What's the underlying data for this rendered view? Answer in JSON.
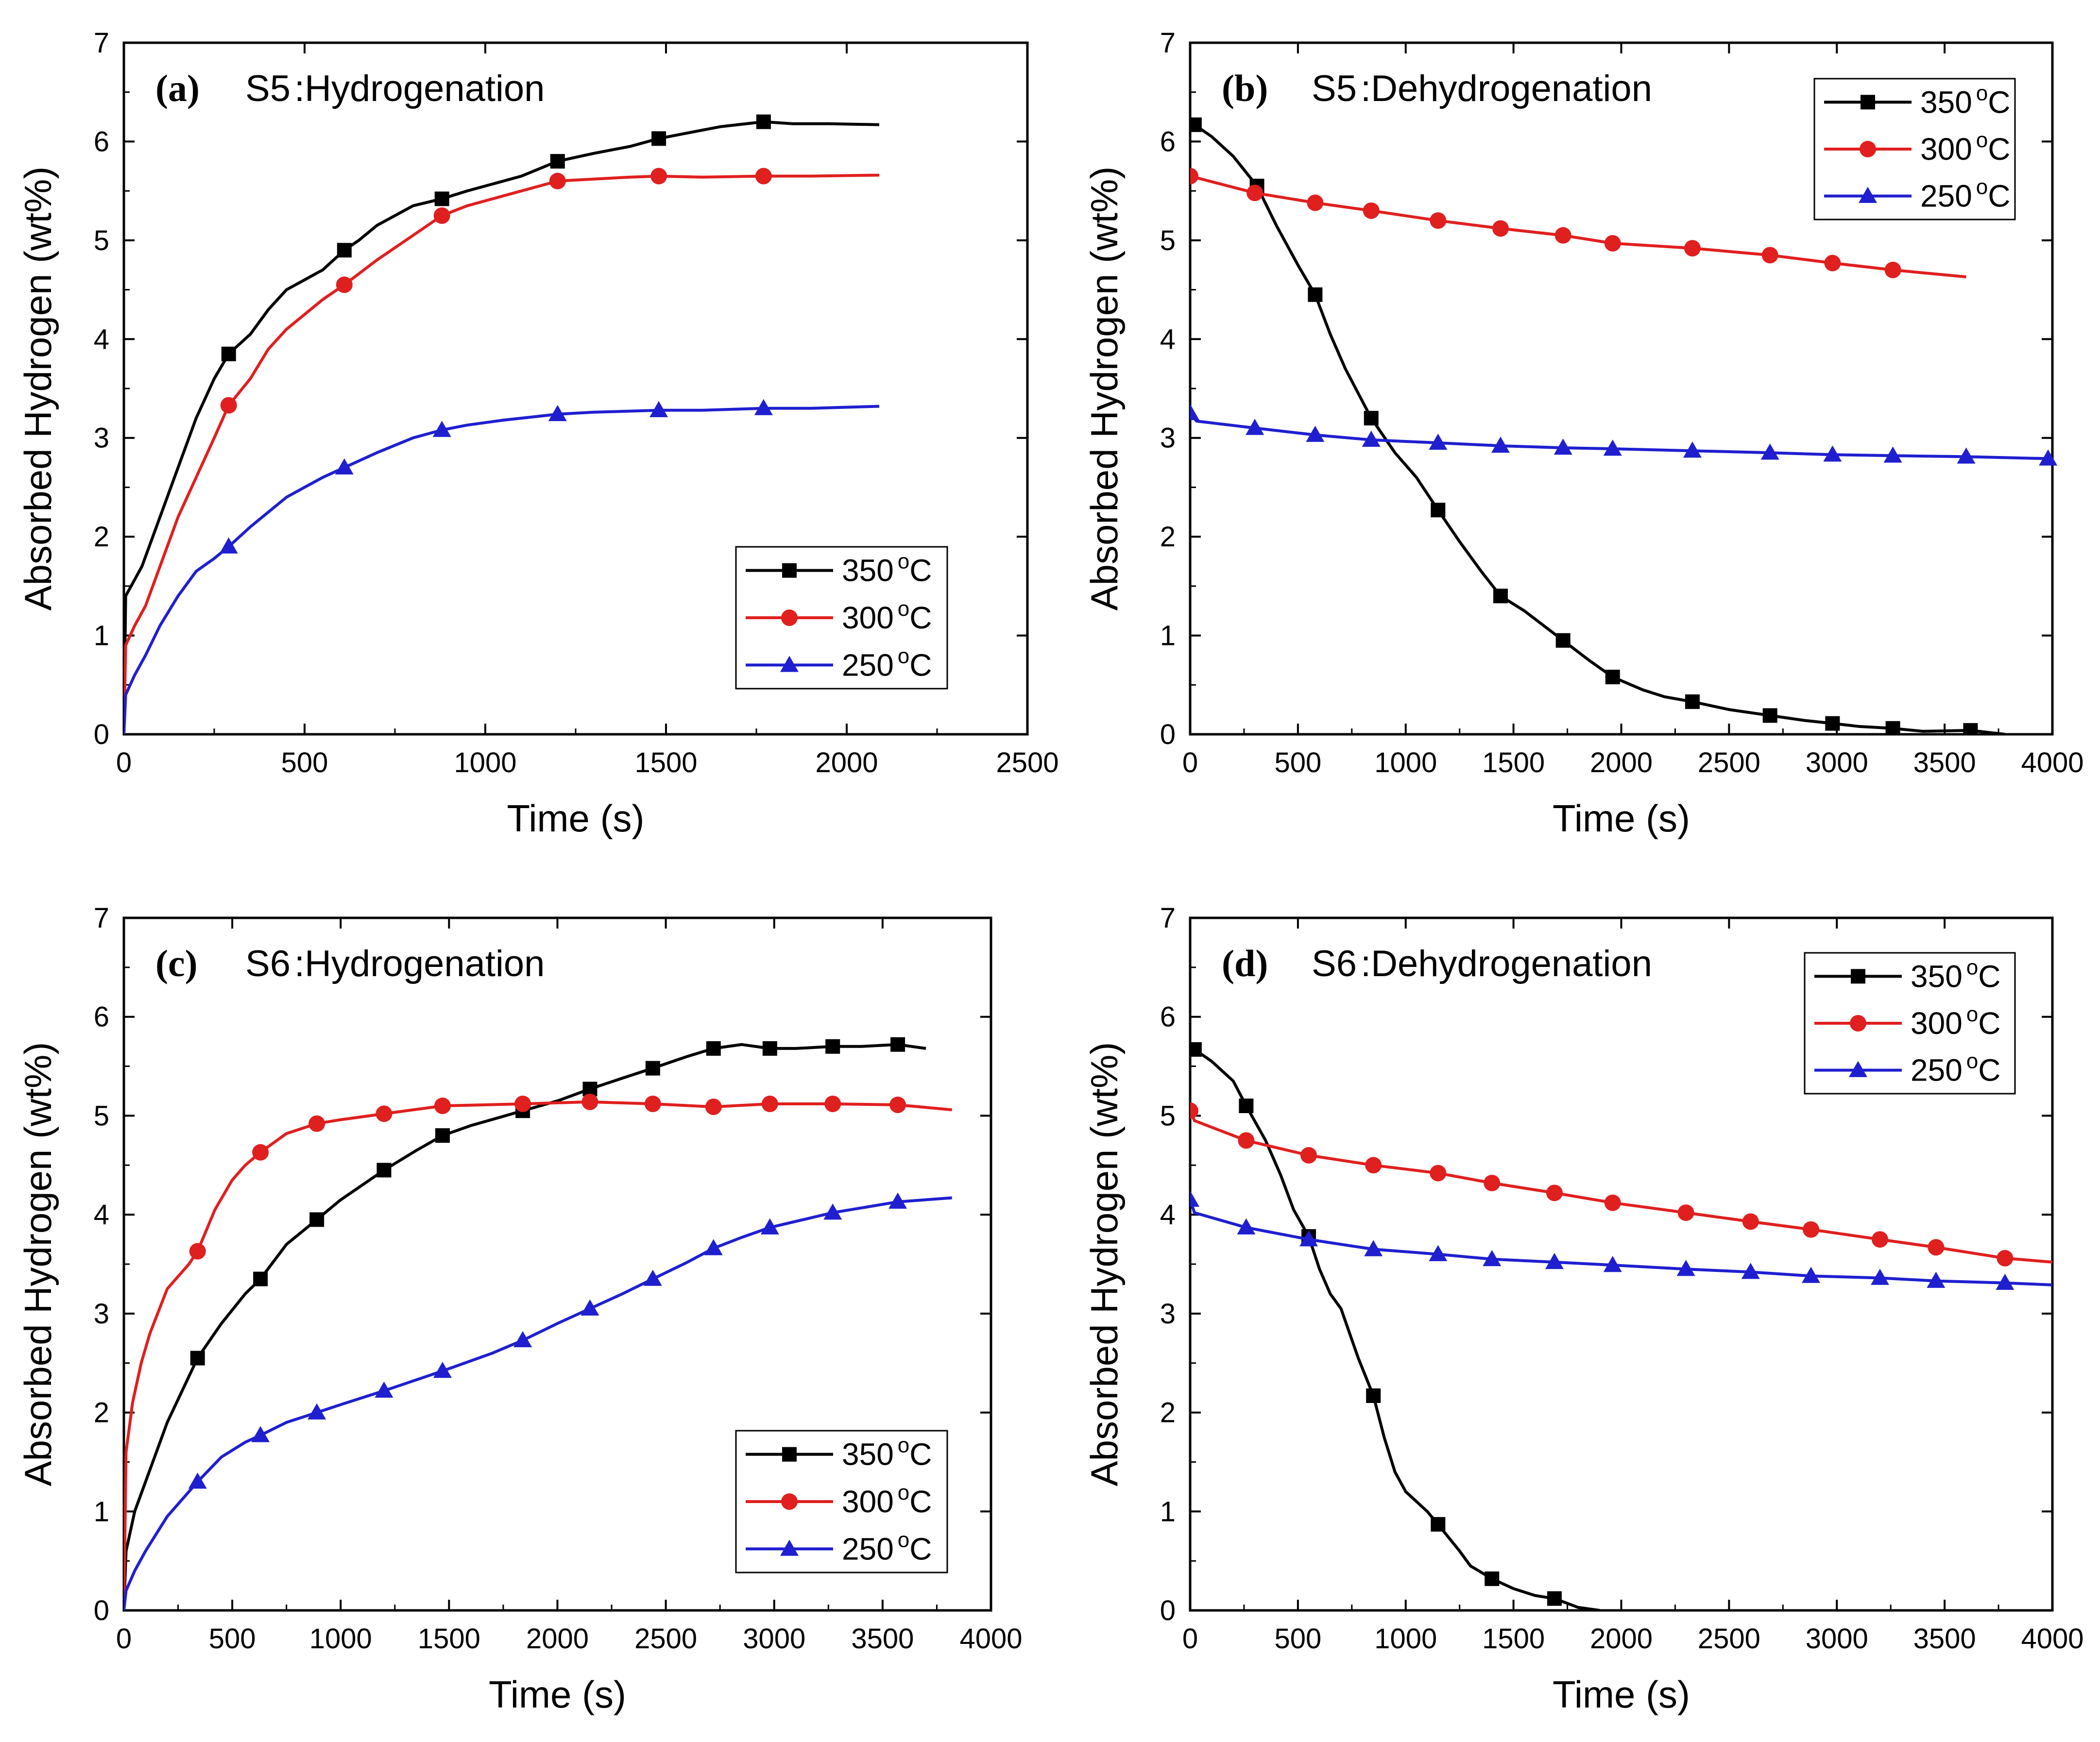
{
  "chart_data": [
    {
      "type": "line",
      "panel": "(a)",
      "sample": "S5",
      "process": "Hydrogenation",
      "xlabel": "Time (s)",
      "ylabel": "Absorbed Hydrogen (wt%)",
      "xlim": [
        0,
        2500
      ],
      "ylim": [
        0,
        7
      ],
      "xticks": [
        0,
        500,
        1000,
        1500,
        2000,
        2500
      ],
      "xtick_labels": [
        "0",
        "500",
        "1000",
        "1500",
        "2000",
        "2500"
      ],
      "yticks": [
        0,
        1,
        2,
        3,
        4,
        5,
        6,
        7
      ],
      "ytick_labels": [
        "0",
        "1",
        "2",
        "3",
        "4",
        "5",
        "6",
        "7"
      ],
      "legend_position": "bottom-right",
      "series": [
        {
          "name": "350",
          "unit": "C",
          "color": "#000000",
          "marker": "square",
          "x": [
            0,
            5,
            20,
            50,
            100,
            150,
            200,
            250,
            290,
            350,
            400,
            450,
            500,
            550,
            610,
            650,
            700,
            750,
            800,
            880,
            950,
            1000,
            1100,
            1200,
            1300,
            1400,
            1480,
            1550,
            1650,
            1770,
            1850,
            1950,
            2090
          ],
          "y": [
            0,
            1.4,
            1.5,
            1.7,
            2.2,
            2.7,
            3.2,
            3.6,
            3.85,
            4.05,
            4.3,
            4.5,
            4.6,
            4.7,
            4.9,
            5.0,
            5.15,
            5.25,
            5.35,
            5.42,
            5.5,
            5.55,
            5.65,
            5.8,
            5.88,
            5.95,
            6.03,
            6.08,
            6.15,
            6.2,
            6.18,
            6.18,
            6.17
          ],
          "marker_x": [
            290,
            610,
            880,
            1200,
            1480,
            1770
          ]
        },
        {
          "name": "300",
          "unit": "C",
          "color": "#e01f1f",
          "marker": "circle",
          "x": [
            0,
            5,
            30,
            60,
            100,
            150,
            200,
            250,
            290,
            350,
            400,
            450,
            500,
            550,
            610,
            700,
            800,
            880,
            950,
            1050,
            1150,
            1200,
            1300,
            1400,
            1480,
            1600,
            1770,
            1900,
            2090
          ],
          "y": [
            0,
            0.9,
            1.1,
            1.3,
            1.7,
            2.2,
            2.6,
            3.0,
            3.33,
            3.6,
            3.9,
            4.1,
            4.25,
            4.4,
            4.55,
            4.8,
            5.05,
            5.25,
            5.35,
            5.45,
            5.55,
            5.6,
            5.62,
            5.64,
            5.65,
            5.64,
            5.65,
            5.65,
            5.66
          ],
          "marker_x": [
            290,
            610,
            880,
            1200,
            1480,
            1770
          ]
        },
        {
          "name": "250",
          "unit": "C",
          "color": "#1f1fd0",
          "marker": "triangle",
          "x": [
            0,
            5,
            30,
            60,
            100,
            150,
            200,
            250,
            290,
            350,
            400,
            450,
            500,
            550,
            610,
            700,
            800,
            880,
            950,
            1050,
            1200,
            1300,
            1480,
            1600,
            1770,
            1900,
            2090
          ],
          "y": [
            0,
            0.4,
            0.6,
            0.8,
            1.1,
            1.4,
            1.65,
            1.78,
            1.9,
            2.1,
            2.25,
            2.4,
            2.5,
            2.6,
            2.7,
            2.85,
            3.0,
            3.08,
            3.13,
            3.18,
            3.24,
            3.26,
            3.28,
            3.28,
            3.3,
            3.3,
            3.32
          ],
          "marker_x": [
            290,
            610,
            880,
            1200,
            1480,
            1770
          ]
        }
      ]
    },
    {
      "type": "line",
      "panel": "(b)",
      "sample": "S5",
      "process": "Dehydrogenation",
      "xlabel": "Time (s)",
      "ylabel": "Absorbed Hydrogen (wt%)",
      "xlim": [
        0,
        4000
      ],
      "ylim": [
        0,
        7
      ],
      "xticks": [
        0,
        500,
        1000,
        1500,
        2000,
        2500,
        3000,
        3500,
        4000
      ],
      "xtick_labels": [
        "0",
        "500",
        "1000",
        "1500",
        "2000",
        "2500",
        "3000",
        "3500",
        "4000"
      ],
      "yticks": [
        0,
        1,
        2,
        3,
        4,
        5,
        6,
        7
      ],
      "ytick_labels": [
        "0",
        "1",
        "2",
        "3",
        "4",
        "5",
        "6",
        "7"
      ],
      "legend_position": "top-right",
      "series": [
        {
          "name": "350",
          "unit": "C",
          "color": "#000000",
          "marker": "square",
          "x": [
            0,
            20,
            100,
            200,
            310,
            400,
            500,
            580,
            650,
            720,
            840,
            950,
            1050,
            1150,
            1250,
            1350,
            1440,
            1550,
            1730,
            1850,
            1960,
            2100,
            2200,
            2330,
            2500,
            2690,
            2850,
            2980,
            3100,
            3260,
            3400,
            3620,
            3780
          ],
          "y": [
            6.15,
            6.17,
            6.05,
            5.85,
            5.55,
            5.15,
            4.75,
            4.45,
            4.05,
            3.7,
            3.2,
            2.85,
            2.6,
            2.27,
            1.95,
            1.65,
            1.4,
            1.25,
            0.95,
            0.75,
            0.58,
            0.45,
            0.38,
            0.33,
            0.25,
            0.19,
            0.14,
            0.11,
            0.08,
            0.06,
            0.03,
            0.04,
            0.0
          ],
          "marker_x": [
            20,
            310,
            580,
            840,
            1150,
            1440,
            1730,
            1960,
            2330,
            2690,
            2980,
            3260,
            3620
          ]
        },
        {
          "name": "300",
          "unit": "C",
          "color": "#e01f1f",
          "marker": "circle",
          "x": [
            0,
            300,
            580,
            840,
            1150,
            1440,
            1730,
            1960,
            2330,
            2690,
            2980,
            3260,
            3600
          ],
          "y": [
            5.65,
            5.48,
            5.38,
            5.3,
            5.2,
            5.12,
            5.05,
            4.97,
            4.92,
            4.85,
            4.77,
            4.7,
            4.63
          ],
          "marker_x": [
            0,
            300,
            580,
            840,
            1150,
            1440,
            1730,
            1960,
            2330,
            2690,
            2980,
            3260
          ]
        },
        {
          "name": "250",
          "unit": "C",
          "color": "#1f1fd0",
          "marker": "triangle",
          "x": [
            0,
            30,
            300,
            580,
            840,
            1150,
            1440,
            1730,
            1960,
            2330,
            2690,
            2980,
            3260,
            3600,
            3980
          ],
          "y": [
            3.25,
            3.17,
            3.1,
            3.03,
            2.98,
            2.95,
            2.92,
            2.9,
            2.89,
            2.87,
            2.85,
            2.83,
            2.82,
            2.81,
            2.79
          ],
          "marker_x": [
            0,
            300,
            580,
            840,
            1150,
            1440,
            1730,
            1960,
            2330,
            2690,
            2980,
            3260,
            3600,
            3980
          ]
        }
      ]
    },
    {
      "type": "line",
      "panel": "(c)",
      "sample": "S6",
      "process": "Hydrogenation",
      "xlabel": "Time (s)",
      "ylabel": "Absorbed Hydrogen (wt%)",
      "xlim": [
        0,
        4000
      ],
      "ylim": [
        0,
        7
      ],
      "xticks": [
        0,
        500,
        1000,
        1500,
        2000,
        2500,
        3000,
        3500,
        4000
      ],
      "xtick_labels": [
        "0",
        "500",
        "1000",
        "1500",
        "2000",
        "2500",
        "3000",
        "3500",
        "4000"
      ],
      "yticks": [
        0,
        1,
        2,
        3,
        4,
        5,
        6,
        7
      ],
      "ytick_labels": [
        "0",
        "1",
        "2",
        "3",
        "4",
        "5",
        "6",
        "7"
      ],
      "legend_position": "bottom-right",
      "series": [
        {
          "name": "350",
          "unit": "C",
          "color": "#000000",
          "marker": "square",
          "x": [
            0,
            10,
            50,
            100,
            200,
            340,
            450,
            560,
            630,
            750,
            890,
            1000,
            1200,
            1350,
            1470,
            1600,
            1840,
            2000,
            2150,
            2300,
            2440,
            2600,
            2720,
            2850,
            2980,
            3100,
            3270,
            3400,
            3570,
            3700
          ],
          "y": [
            0,
            0.6,
            1.0,
            1.3,
            1.9,
            2.55,
            2.9,
            3.2,
            3.35,
            3.7,
            3.95,
            4.15,
            4.45,
            4.65,
            4.8,
            4.9,
            5.05,
            5.15,
            5.27,
            5.38,
            5.48,
            5.6,
            5.68,
            5.72,
            5.68,
            5.68,
            5.7,
            5.7,
            5.72,
            5.68
          ],
          "marker_x": [
            340,
            630,
            890,
            1200,
            1470,
            1840,
            2150,
            2440,
            2720,
            2980,
            3270,
            3570
          ]
        },
        {
          "name": "300",
          "unit": "C",
          "color": "#e01f1f",
          "marker": "circle",
          "x": [
            0,
            10,
            40,
            80,
            120,
            200,
            300,
            340,
            420,
            500,
            560,
            630,
            750,
            890,
            1000,
            1200,
            1470,
            1840,
            2150,
            2440,
            2720,
            2980,
            3270,
            3570,
            3820
          ],
          "y": [
            0,
            1.6,
            2.1,
            2.5,
            2.8,
            3.25,
            3.5,
            3.63,
            4.05,
            4.35,
            4.5,
            4.63,
            4.82,
            4.92,
            4.96,
            5.02,
            5.1,
            5.12,
            5.14,
            5.12,
            5.09,
            5.12,
            5.12,
            5.11,
            5.06
          ],
          "marker_x": [
            340,
            630,
            890,
            1200,
            1470,
            1840,
            2150,
            2440,
            2720,
            2980,
            3270,
            3570
          ]
        },
        {
          "name": "250",
          "unit": "C",
          "color": "#1f1fd0",
          "marker": "triangle",
          "x": [
            0,
            10,
            50,
            100,
            200,
            340,
            450,
            560,
            630,
            750,
            890,
            1000,
            1200,
            1470,
            1700,
            1840,
            2000,
            2150,
            2300,
            2440,
            2600,
            2720,
            2850,
            2980,
            3270,
            3570,
            3820
          ],
          "y": [
            0,
            0.2,
            0.4,
            0.6,
            0.95,
            1.3,
            1.55,
            1.7,
            1.77,
            1.9,
            2.0,
            2.08,
            2.22,
            2.42,
            2.6,
            2.73,
            2.9,
            3.05,
            3.2,
            3.35,
            3.52,
            3.66,
            3.77,
            3.87,
            4.02,
            4.13,
            4.17
          ],
          "marker_x": [
            340,
            630,
            890,
            1200,
            1470,
            1840,
            2150,
            2440,
            2720,
            2980,
            3270,
            3570
          ]
        }
      ]
    },
    {
      "type": "line",
      "panel": "(d)",
      "sample": "S6",
      "process": "Dehydrogenation",
      "xlabel": "Time (s)",
      "ylabel": "Absorbed Hydrogen (wt%)",
      "xlim": [
        0,
        4000
      ],
      "ylim": [
        0,
        7
      ],
      "xticks": [
        0,
        500,
        1000,
        1500,
        2000,
        2500,
        3000,
        3500,
        4000
      ],
      "xtick_labels": [
        "0",
        "500",
        "1000",
        "1500",
        "2000",
        "2500",
        "3000",
        "3500",
        "4000"
      ],
      "yticks": [
        0,
        1,
        2,
        3,
        4,
        5,
        6,
        7
      ],
      "ytick_labels": [
        "0",
        "1",
        "2",
        "3",
        "4",
        "5",
        "6",
        "7"
      ],
      "legend_position": "top-right",
      "series": [
        {
          "name": "350",
          "unit": "C",
          "color": "#000000",
          "marker": "square",
          "x": [
            0,
            20,
            100,
            200,
            260,
            350,
            420,
            480,
            550,
            600,
            650,
            700,
            780,
            850,
            900,
            950,
            1000,
            1100,
            1150,
            1250,
            1300,
            1400,
            1500,
            1600,
            1690,
            1800,
            1900
          ],
          "y": [
            5.65,
            5.67,
            5.55,
            5.35,
            5.1,
            4.75,
            4.4,
            4.05,
            3.78,
            3.45,
            3.2,
            3.05,
            2.55,
            2.17,
            1.75,
            1.4,
            1.2,
            1.0,
            0.87,
            0.6,
            0.45,
            0.32,
            0.22,
            0.15,
            0.12,
            0.03,
            0.0
          ],
          "marker_x": [
            20,
            260,
            550,
            850,
            1150,
            1400,
            1690
          ]
        },
        {
          "name": "300",
          "unit": "C",
          "color": "#e01f1f",
          "marker": "circle",
          "x": [
            0,
            20,
            260,
            550,
            850,
            1150,
            1400,
            1690,
            1960,
            2300,
            2600,
            2880,
            3200,
            3460,
            3780,
            4000
          ],
          "y": [
            5.05,
            4.95,
            4.75,
            4.6,
            4.5,
            4.42,
            4.32,
            4.22,
            4.12,
            4.02,
            3.93,
            3.85,
            3.75,
            3.67,
            3.56,
            3.52
          ],
          "marker_x": [
            0,
            260,
            550,
            850,
            1150,
            1400,
            1690,
            1960,
            2300,
            2600,
            2880,
            3200,
            3460,
            3780
          ]
        },
        {
          "name": "250",
          "unit": "C",
          "color": "#1f1fd0",
          "marker": "triangle",
          "x": [
            0,
            20,
            260,
            550,
            850,
            1150,
            1400,
            1690,
            1960,
            2300,
            2600,
            2880,
            3200,
            3460,
            3780,
            4000
          ],
          "y": [
            4.15,
            4.02,
            3.87,
            3.75,
            3.65,
            3.6,
            3.55,
            3.52,
            3.49,
            3.45,
            3.42,
            3.38,
            3.36,
            3.33,
            3.31,
            3.29
          ],
          "marker_x": [
            0,
            260,
            550,
            850,
            1150,
            1400,
            1690,
            1960,
            2300,
            2600,
            2880,
            3200,
            3460,
            3780
          ]
        }
      ]
    }
  ]
}
